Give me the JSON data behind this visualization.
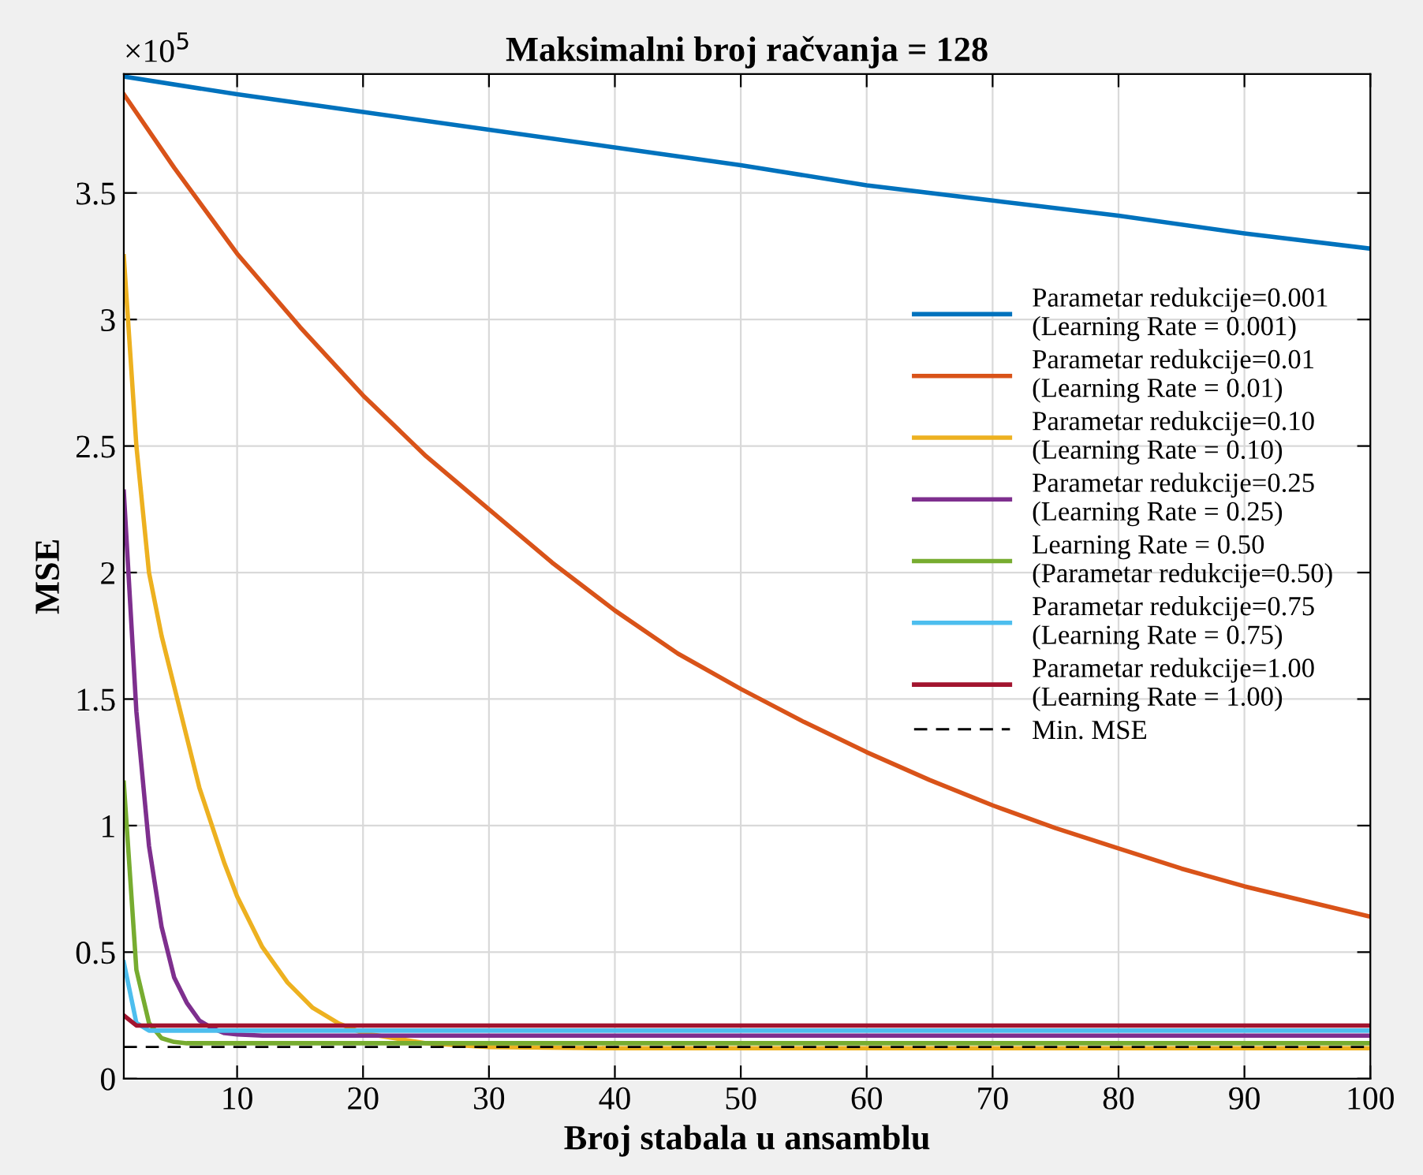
{
  "chart_data": {
    "type": "line",
    "title": "Maksimalni broj račvanja = 128",
    "xlabel": "Broj stabala u ansamblu",
    "ylabel": "MSE",
    "annotations": [
      "×10$^{5}$"
    ],
    "xlim": [
      1,
      100
    ],
    "xticks": [
      10,
      20,
      30,
      40,
      50,
      60,
      70,
      80,
      90,
      100
    ],
    "ylim": [
      0,
      3.97
    ],
    "yticks": [
      0,
      0.5,
      1,
      1.5,
      2,
      2.5,
      3,
      3.5
    ],
    "grid": true,
    "legend": "right",
    "line_style": "solid",
    "marker": "none",
    "series": [
      {
        "name": "Parametar redukcije=0.001\n(Learning Rate = 0.001)",
        "color": "#0072bd",
        "x": [
          1,
          10,
          20,
          30,
          40,
          50,
          60,
          70,
          80,
          90,
          100
        ],
        "values": [
          3.96,
          3.89,
          3.82,
          3.75,
          3.68,
          3.61,
          3.53,
          3.47,
          3.41,
          3.34,
          3.28
        ]
      },
      {
        "name": "Parametar redukcije=0.01\n(Learning Rate = 0.01)",
        "color": "#d95319",
        "x": [
          1,
          5,
          10,
          15,
          20,
          25,
          30,
          35,
          40,
          45,
          50,
          55,
          60,
          65,
          70,
          75,
          80,
          85,
          90,
          95,
          100
        ],
        "values": [
          3.89,
          3.6,
          3.26,
          2.97,
          2.7,
          2.46,
          2.25,
          2.04,
          1.85,
          1.68,
          1.54,
          1.41,
          1.29,
          1.18,
          1.08,
          0.99,
          0.91,
          0.83,
          0.76,
          0.7,
          0.64
        ]
      },
      {
        "name": "Parametar redukcije=0.10\n(Learning Rate = 0.10)",
        "color": "#edb120",
        "x": [
          1,
          2,
          3,
          4,
          5,
          6,
          7,
          8,
          9,
          10,
          12,
          14,
          16,
          18,
          20,
          25,
          30,
          40,
          100
        ],
        "values": [
          3.25,
          2.5,
          2.0,
          1.75,
          1.55,
          1.35,
          1.15,
          1.0,
          0.85,
          0.72,
          0.52,
          0.38,
          0.28,
          0.22,
          0.18,
          0.14,
          0.125,
          0.12,
          0.12
        ]
      },
      {
        "name": "Parametar redukcije=0.25\n(Learning Rate = 0.25)",
        "color": "#7e2f8e",
        "x": [
          1,
          2,
          3,
          4,
          5,
          6,
          7,
          8,
          9,
          10,
          12,
          100
        ],
        "values": [
          2.32,
          1.45,
          0.92,
          0.6,
          0.4,
          0.3,
          0.23,
          0.2,
          0.18,
          0.175,
          0.17,
          0.17
        ]
      },
      {
        "name": "Learning Rate = 0.50\n(Parametar redukcije=0.50)",
        "color": "#77ac30",
        "x": [
          1,
          2,
          3,
          4,
          5,
          6,
          100
        ],
        "values": [
          1.17,
          0.43,
          0.22,
          0.16,
          0.145,
          0.14,
          0.14
        ]
      },
      {
        "name": "Parametar redukcije=0.75\n(Learning Rate = 0.75)",
        "color": "#4dbeee",
        "x": [
          1,
          2,
          3,
          100
        ],
        "values": [
          0.46,
          0.22,
          0.19,
          0.19
        ]
      },
      {
        "name": "Parametar redukcije=1.00\n(Learning Rate = 1.00)",
        "color": "#a2142f",
        "x": [
          1,
          2,
          100
        ],
        "values": [
          0.25,
          0.21,
          0.21
        ]
      }
    ],
    "ref_lines": [
      {
        "axis": "y",
        "value": 0.125,
        "label": "Min. MSE",
        "color": "#000000",
        "line_style": "dashed"
      }
    ]
  }
}
